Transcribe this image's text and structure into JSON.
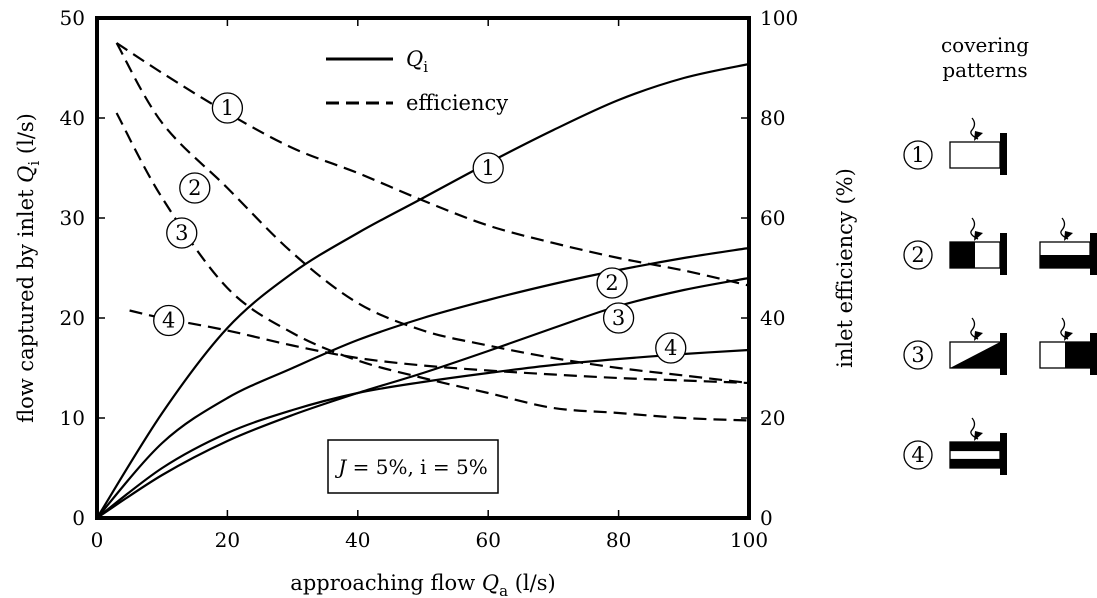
{
  "chart_data": {
    "type": "line",
    "x_axis": {
      "label": "approaching flow",
      "symbol": "Q",
      "subscript": "a",
      "unit": "(l/s)",
      "range": [
        0,
        100
      ],
      "ticks": [
        "0",
        "20",
        "40",
        "60",
        "80",
        "100"
      ]
    },
    "y_axis_left": {
      "label": "flow captured by inlet",
      "symbol": "Q",
      "subscript": "i",
      "unit": "(l/s)",
      "range": [
        0,
        50
      ],
      "ticks": [
        "0",
        "10",
        "20",
        "30",
        "40",
        "50"
      ]
    },
    "y_axis_right": {
      "label": "inlet efficiency (%)",
      "range": [
        0,
        100
      ],
      "ticks": [
        "0",
        "20",
        "40",
        "60",
        "80",
        "100"
      ]
    },
    "legend": [
      {
        "symbol": "Q",
        "subscript": "i",
        "style": "solid"
      },
      {
        "label": "efficiency",
        "style": "dashed"
      }
    ],
    "condition_box": {
      "j_symbol": "J",
      "j_value": " = 5%, ",
      "i_text": "i = 5%"
    },
    "series": [
      {
        "label": "1",
        "style": "solid",
        "axis": "left",
        "x": [
          0,
          10,
          20,
          30,
          40,
          50,
          60,
          70,
          80,
          90,
          100
        ],
        "y": [
          0,
          10.5,
          19,
          24.5,
          28.5,
          32,
          35.5,
          38.8,
          41.8,
          44,
          45.4
        ],
        "label_at": [
          60,
          35
        ]
      },
      {
        "label": "2",
        "style": "solid",
        "axis": "left",
        "x": [
          0,
          10,
          20,
          30,
          40,
          50,
          60,
          70,
          80,
          90,
          100
        ],
        "y": [
          0,
          7.5,
          12,
          15,
          17.8,
          20,
          21.8,
          23.4,
          24.8,
          26,
          27
        ],
        "label_at": [
          79,
          23.5
        ]
      },
      {
        "label": "3",
        "style": "solid",
        "axis": "left",
        "x": [
          0,
          10,
          20,
          30,
          40,
          50,
          60,
          70,
          80,
          90,
          100
        ],
        "y": [
          0,
          4.3,
          7.7,
          10.3,
          12.5,
          14.5,
          16.7,
          19,
          21.2,
          22.8,
          24
        ],
        "label_at": [
          80,
          20
        ]
      },
      {
        "label": "4",
        "style": "solid",
        "axis": "left",
        "x": [
          0,
          10,
          20,
          30,
          40,
          50,
          60,
          70,
          80,
          90,
          100
        ],
        "y": [
          0,
          5,
          8.5,
          10.8,
          12.5,
          13.6,
          14.5,
          15.3,
          15.9,
          16.4,
          16.8
        ],
        "label_at": [
          88,
          17
        ]
      },
      {
        "label": "1",
        "style": "dashed",
        "axis": "right",
        "x": [
          3,
          10,
          20,
          30,
          40,
          50,
          60,
          70,
          80,
          90,
          100
        ],
        "y": [
          95,
          89,
          81,
          74,
          69,
          63.5,
          58.5,
          55,
          52,
          49.5,
          46.5
        ],
        "label_at": [
          20,
          82
        ]
      },
      {
        "label": "2",
        "style": "dashed",
        "axis": "right",
        "x": [
          3,
          10,
          20,
          30,
          40,
          50,
          60,
          70,
          80,
          90,
          100
        ],
        "y": [
          95,
          79,
          66,
          53,
          43,
          37.5,
          34.5,
          32,
          30,
          28.5,
          27
        ],
        "label_at": [
          15,
          66
        ]
      },
      {
        "label": "3",
        "style": "dashed",
        "axis": "right",
        "x": [
          3,
          10,
          20,
          30,
          40,
          50,
          60,
          70,
          80,
          90,
          100
        ],
        "y": [
          81,
          64,
          46,
          37,
          31.5,
          28,
          25,
          22,
          21,
          20,
          19.5
        ],
        "label_at": [
          13,
          57
        ]
      },
      {
        "label": "4",
        "style": "dashed",
        "axis": "right",
        "x": [
          5,
          10,
          20,
          30,
          40,
          50,
          60,
          70,
          80,
          90,
          100
        ],
        "y": [
          41.5,
          40,
          37.5,
          34.5,
          32,
          30.5,
          29.5,
          28.7,
          28,
          27.5,
          27
        ],
        "label_at": [
          11,
          39.5
        ]
      }
    ]
  },
  "covering_patterns": {
    "title_line1": "covering",
    "title_line2": "patterns",
    "patterns": [
      {
        "label": "1",
        "variants": [
          "open"
        ]
      },
      {
        "label": "2",
        "variants": [
          "left-half-covered",
          "bottom-half-covered"
        ]
      },
      {
        "label": "3",
        "variants": [
          "diagonal-covered",
          "right-half-covered"
        ]
      },
      {
        "label": "4",
        "variants": [
          "middle-band-open"
        ]
      }
    ]
  }
}
